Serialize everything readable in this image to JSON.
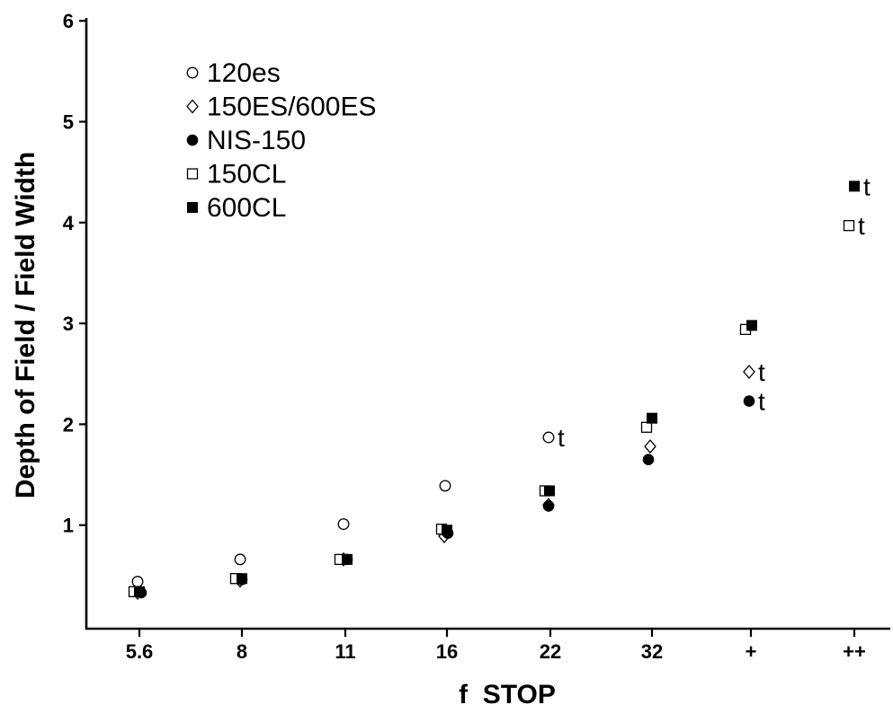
{
  "chart_data": {
    "type": "scatter",
    "title": "",
    "xlabel": "f  STOP",
    "ylabel": "Depth of Field / Field Width",
    "categories": [
      "5.6",
      "8",
      "11",
      "16",
      "22",
      "32",
      "+",
      "++"
    ],
    "ylim": [
      0,
      6
    ],
    "yticks": [
      1,
      2,
      3,
      4,
      5,
      6
    ],
    "grid": false,
    "legend_placement": "top-left",
    "series": [
      {
        "name": "120es",
        "marker": "circle-open",
        "values": [
          0.44,
          0.66,
          1.01,
          1.39,
          1.87,
          null,
          null,
          null
        ],
        "annotations": [
          {
            "category": "22",
            "text": "t"
          }
        ]
      },
      {
        "name": "150ES/600ES",
        "marker": "diamond-open",
        "values": [
          0.33,
          0.45,
          0.66,
          0.89,
          1.2,
          1.78,
          2.52,
          null
        ],
        "annotations": [
          {
            "category": "+",
            "text": "t"
          }
        ]
      },
      {
        "name": "NIS-150",
        "marker": "circle-filled",
        "values": [
          0.33,
          0.46,
          0.66,
          0.92,
          1.19,
          1.65,
          2.23,
          null
        ],
        "annotations": [
          {
            "category": "+",
            "text": "t"
          }
        ]
      },
      {
        "name": "150CL",
        "marker": "square-open",
        "values": [
          0.34,
          0.47,
          0.66,
          0.96,
          1.34,
          1.97,
          2.94,
          3.97
        ],
        "annotations": [
          {
            "category": "++",
            "text": "t"
          }
        ]
      },
      {
        "name": "600CL",
        "marker": "square-filled",
        "values": [
          0.34,
          0.47,
          0.66,
          0.95,
          1.34,
          2.06,
          2.98,
          4.36
        ],
        "annotations": [
          {
            "category": "++",
            "text": "t"
          }
        ]
      }
    ]
  }
}
